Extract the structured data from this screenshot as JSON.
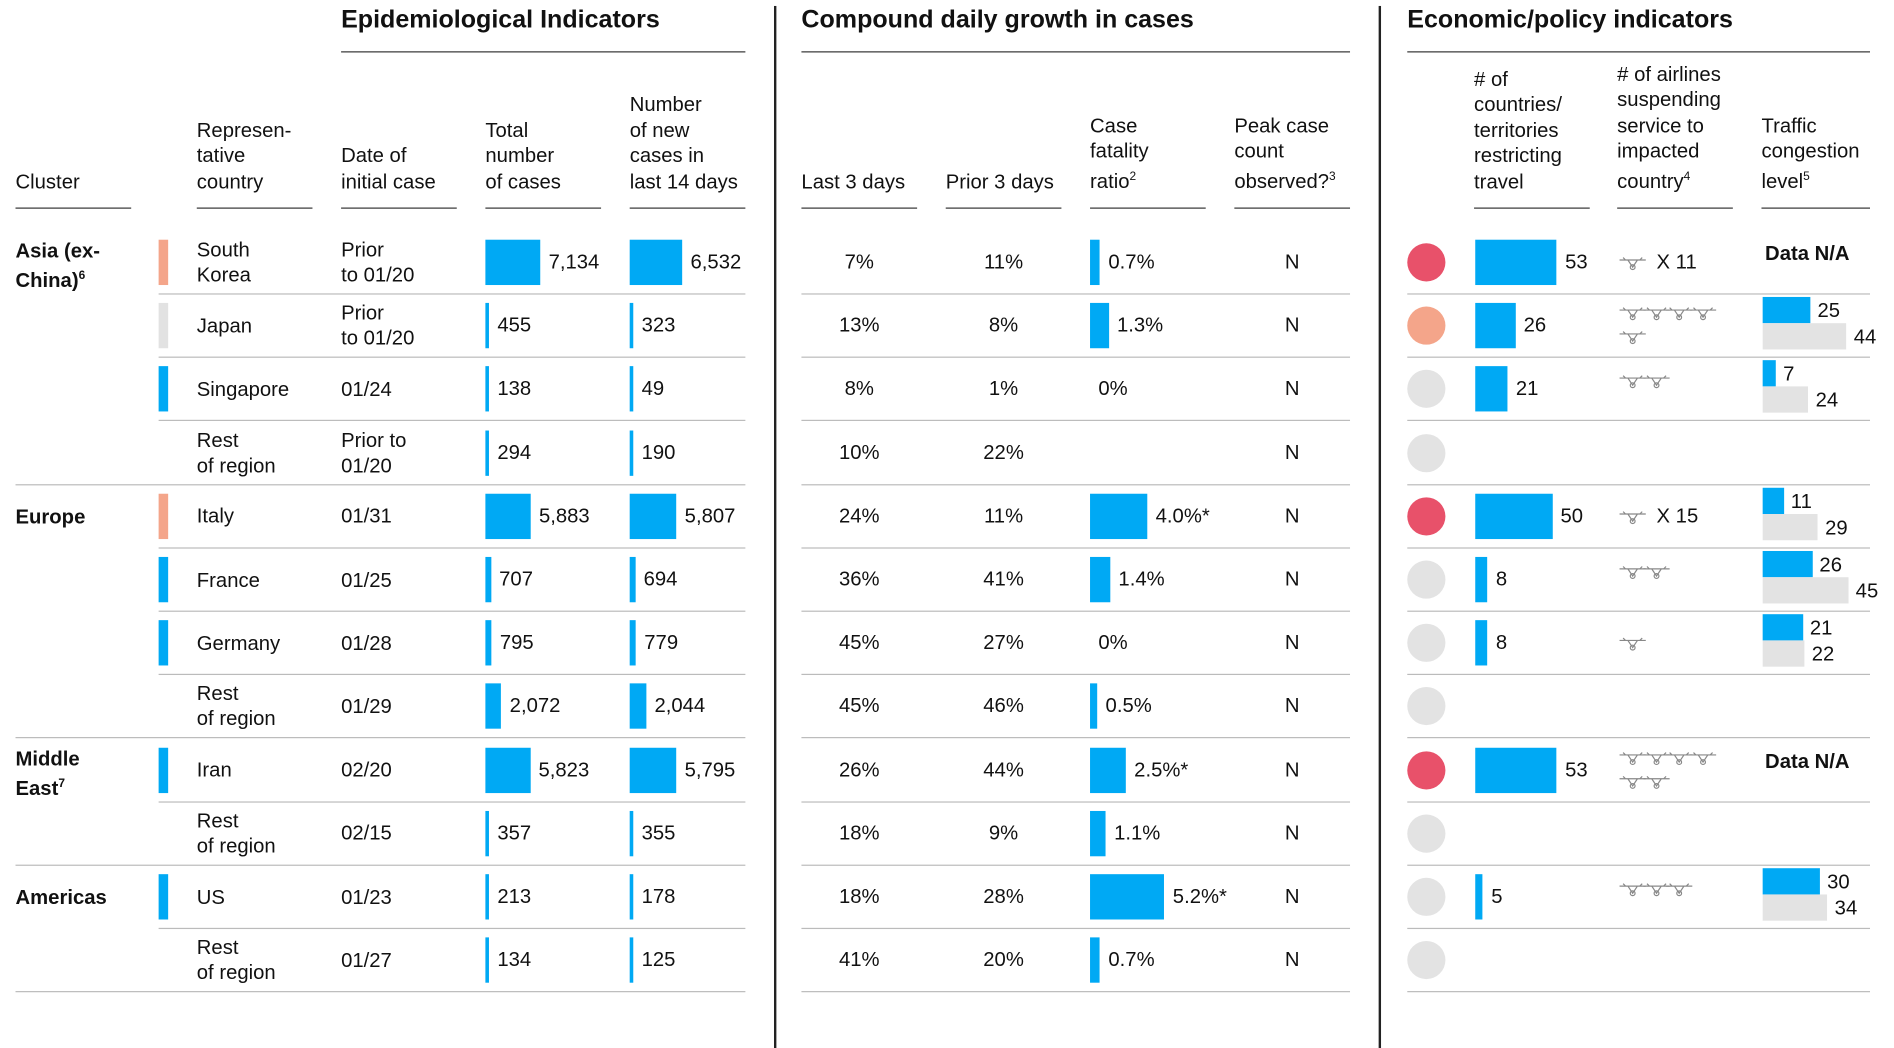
{
  "sections": [
    {
      "title": "Epidemiological Indicators"
    },
    {
      "title": "Compound daily growth in cases"
    },
    {
      "title": "Economic/policy indicators"
    }
  ],
  "headers": [
    {
      "text": "Cluster"
    },
    {
      "text": "Represen-\ntative\ncountry"
    },
    {
      "text": "Date of\ninitial case"
    },
    {
      "text": "Total\nnumber\nof cases"
    },
    {
      "text": "Number\nof new\ncases in\nlast 14 days"
    },
    {
      "text": "Last 3 days"
    },
    {
      "text": "Prior 3 days"
    },
    {
      "text": "Case\nfatality\nratio",
      "note": "2"
    },
    {
      "text": "Peak case\ncount\nobserved?",
      "note": "3"
    },
    {
      "text": "# of\ncountries/\nterritories\nrestricting\ntravel"
    },
    {
      "text": "# of airlines\nsuspending\nservice to\nimpacted\ncountry",
      "note": "4"
    },
    {
      "text": "Traffic\ncongestion\nlevel",
      "note": "5"
    }
  ],
  "clusters": [
    {
      "name": "Asia (ex-\nChina)",
      "note": "6",
      "rows": [
        {
          "country": "South\nKorea",
          "indicator": "#f4a58a",
          "date": "Prior\nto 01/20",
          "total": {
            "value": 7134,
            "label": "7,134"
          },
          "new": {
            "value": 6532,
            "label": "6,532"
          },
          "last3": "7%",
          "prior3": "11%",
          "cfr": {
            "value": 0.7,
            "label": "0.7%"
          },
          "peak": "N",
          "risk": "#e8516a",
          "countries": 53,
          "airlines": {
            "icons": 1,
            "label": "X 11"
          },
          "traffic": "Data N/A"
        },
        {
          "country": "Japan",
          "indicator": "#e2e2e2",
          "date": "Prior\nto 01/20",
          "total": 455,
          "new": 323,
          "last3": "13%",
          "prior3": "8%",
          "cfr": {
            "value": 1.3,
            "label": "1.3%"
          },
          "peak": "N",
          "risk": "#f4a58a",
          "countries": 26,
          "airlines": {
            "icons": 5
          },
          "traffic": [
            25,
            44
          ]
        },
        {
          "country": "Singapore",
          "indicator": "#00a9f4",
          "date": "01/24",
          "total": 138,
          "new": 49,
          "last3": "8%",
          "prior3": "1%",
          "cfr": {
            "value": 0,
            "label": "0%"
          },
          "peak": "N",
          "risk": "#e3e3e3",
          "countries": 21,
          "airlines": {
            "icons": 2
          },
          "traffic": [
            7,
            24
          ]
        },
        {
          "country": "Rest\nof region",
          "indicator": null,
          "date": "Prior to\n01/20",
          "total": 294,
          "new": 190,
          "last3": "10%",
          "prior3": "22%",
          "cfr": null,
          "peak": "N",
          "risk": "#e3e3e3",
          "countries": null,
          "airlines": null,
          "traffic": null
        }
      ]
    },
    {
      "name": "Europe",
      "rows": [
        {
          "country": "Italy",
          "indicator": "#f4a58a",
          "date": "01/31",
          "total": {
            "value": 5883,
            "label": "5,883"
          },
          "new": {
            "value": 5807,
            "label": "5,807"
          },
          "last3": "24%",
          "prior3": "11%",
          "cfr": {
            "value": 4.0,
            "label": "4.0%*"
          },
          "peak": "N",
          "risk": "#e8516a",
          "countries": 50,
          "airlines": {
            "icons": 1,
            "label": "X 15"
          },
          "traffic": [
            11,
            29
          ]
        },
        {
          "country": "France",
          "indicator": "#00a9f4",
          "date": "01/25",
          "total": 707,
          "new": 694,
          "last3": "36%",
          "prior3": "41%",
          "cfr": {
            "value": 1.4,
            "label": "1.4%"
          },
          "peak": "N",
          "risk": "#e3e3e3",
          "countries": 8,
          "airlines": {
            "icons": 2
          },
          "traffic": [
            26,
            45
          ]
        },
        {
          "country": "Germany",
          "indicator": "#00a9f4",
          "date": "01/28",
          "total": 795,
          "new": 779,
          "last3": "45%",
          "prior3": "27%",
          "cfr": {
            "value": 0,
            "label": "0%"
          },
          "peak": "N",
          "risk": "#e3e3e3",
          "countries": 8,
          "airlines": {
            "icons": 1
          },
          "traffic": [
            21,
            22
          ]
        },
        {
          "country": "Rest\nof region",
          "indicator": null,
          "date": "01/29",
          "total": {
            "value": 2072,
            "label": "2,072"
          },
          "new": {
            "value": 2044,
            "label": "2,044"
          },
          "last3": "45%",
          "prior3": "46%",
          "cfr": {
            "value": 0.5,
            "label": "0.5%"
          },
          "peak": "N",
          "risk": "#e3e3e3",
          "countries": null,
          "airlines": null,
          "traffic": null
        }
      ]
    },
    {
      "name": "Middle\nEast",
      "note": "7",
      "rows": [
        {
          "country": "Iran",
          "indicator": "#00a9f4",
          "date": "02/20",
          "total": {
            "value": 5823,
            "label": "5,823"
          },
          "new": {
            "value": 5795,
            "label": "5,795"
          },
          "last3": "26%",
          "prior3": "44%",
          "cfr": {
            "value": 2.5,
            "label": "2.5%*"
          },
          "peak": "N",
          "risk": "#e8516a",
          "countries": 53,
          "airlines": {
            "icons": 6
          },
          "traffic": "Data N/A"
        },
        {
          "country": "Rest\nof region",
          "indicator": null,
          "date": "02/15",
          "total": 357,
          "new": 355,
          "last3": "18%",
          "prior3": "9%",
          "cfr": {
            "value": 1.1,
            "label": "1.1%"
          },
          "peak": "N",
          "risk": "#e3e3e3",
          "countries": null,
          "airlines": null,
          "traffic": null
        }
      ]
    },
    {
      "name": "Americas",
      "rows": [
        {
          "country": "US",
          "indicator": "#00a9f4",
          "date": "01/23",
          "total": 213,
          "new": 178,
          "last3": "18%",
          "prior3": "28%",
          "cfr": {
            "value": 5.2,
            "label": "5.2%*"
          },
          "peak": "N",
          "risk": "#e3e3e3",
          "countries": 5,
          "airlines": {
            "icons": 3
          },
          "traffic": [
            30,
            34
          ]
        },
        {
          "country": "Rest\nof region",
          "indicator": null,
          "date": "01/27",
          "total": 134,
          "new": 125,
          "last3": "41%",
          "prior3": "20%",
          "cfr": {
            "value": 0.7,
            "label": "0.7%"
          },
          "peak": "N",
          "risk": "#e3e3e3",
          "countries": null,
          "airlines": null,
          "traffic": null
        }
      ]
    }
  ]
}
